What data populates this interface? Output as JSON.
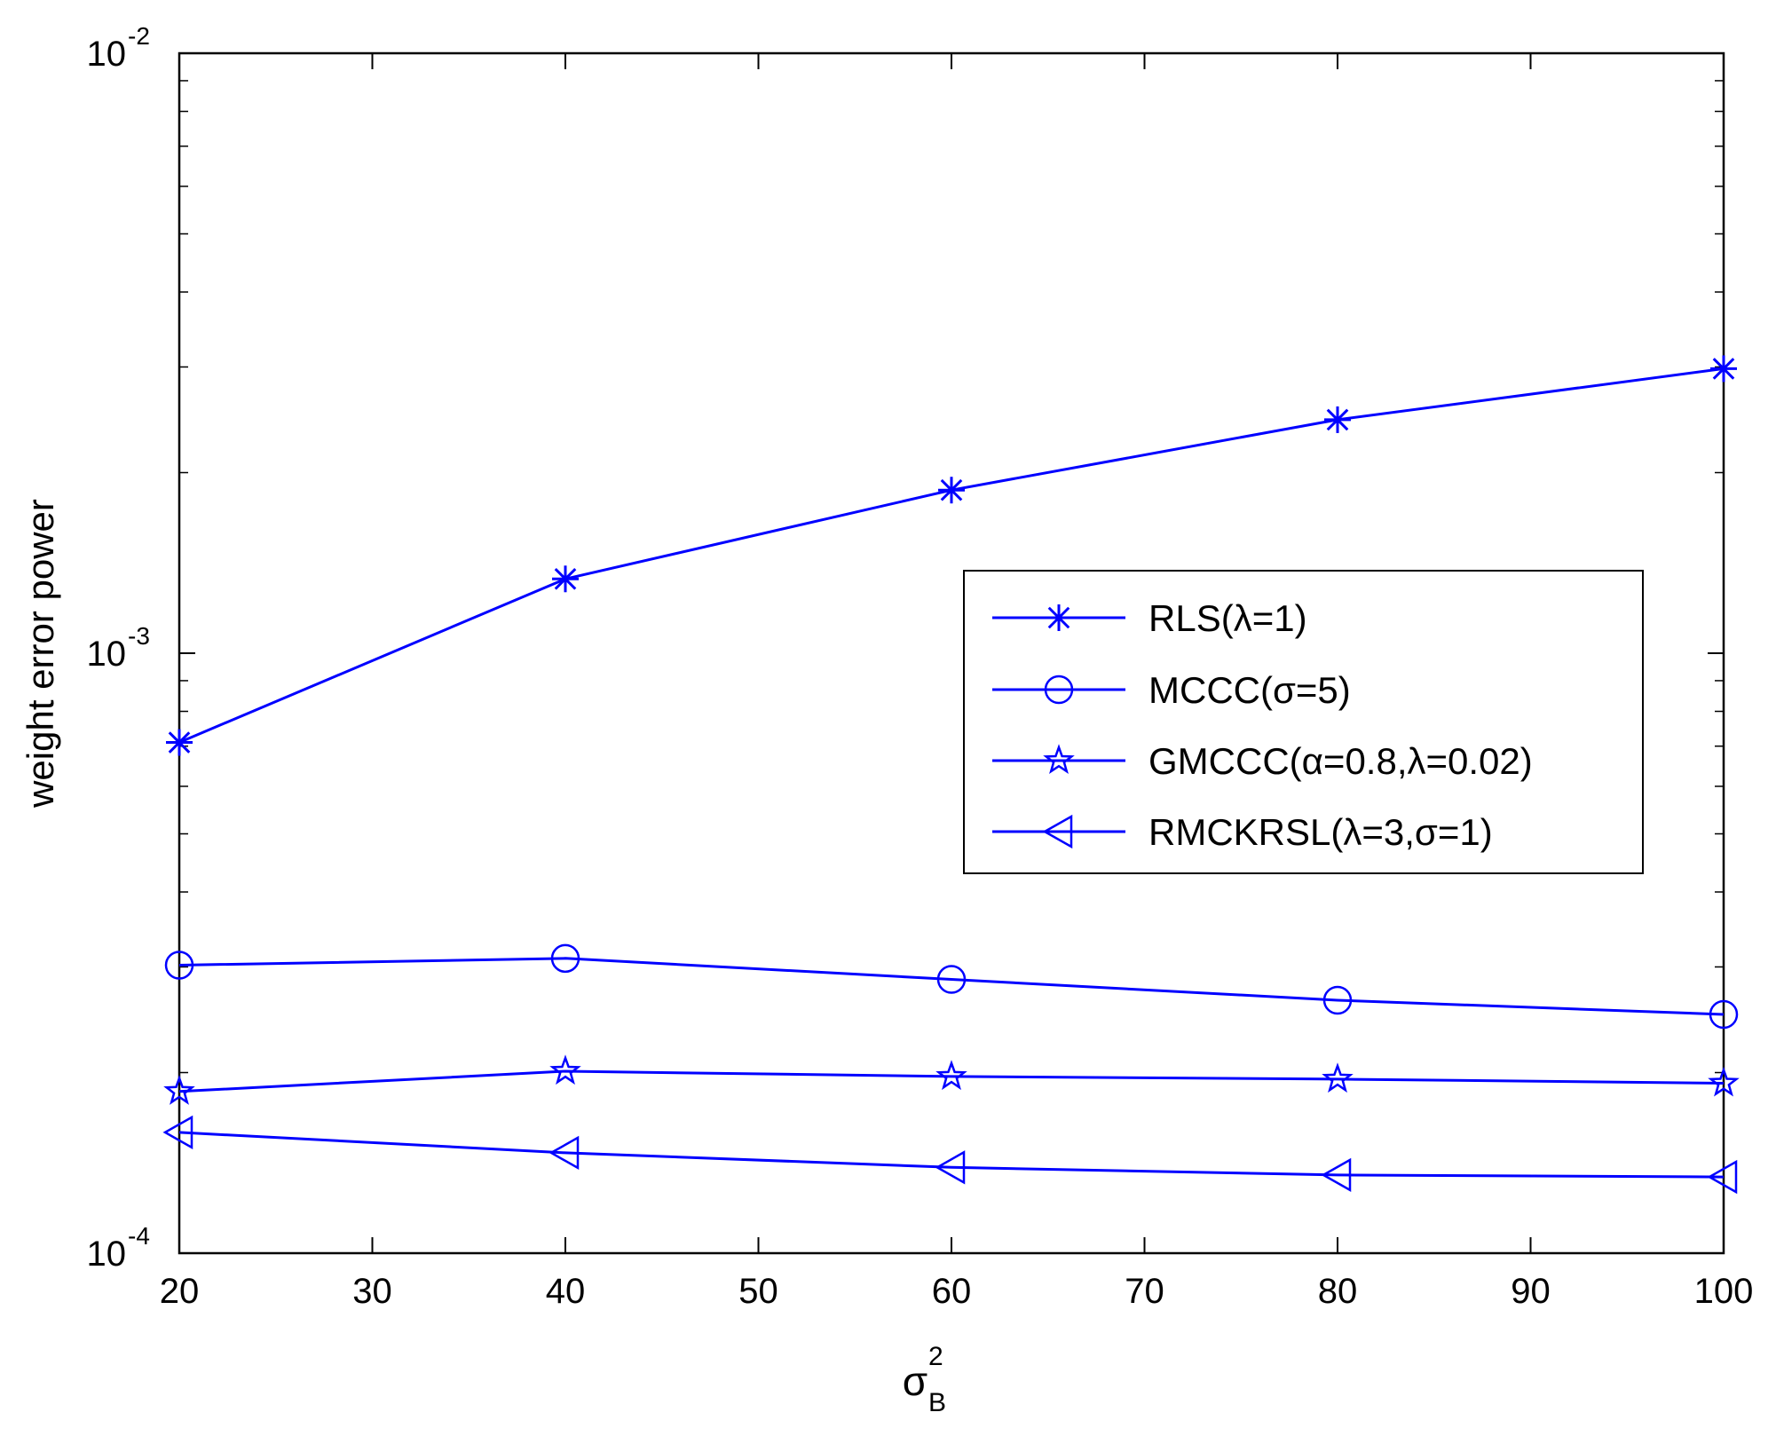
{
  "chart_data": {
    "type": "line",
    "xlabel": "σ",
    "xlabel_superscript": "2",
    "xlabel_subscript": "B",
    "ylabel": "weight error power",
    "yscale": "log",
    "xlim": [
      20,
      100
    ],
    "ylim": [
      0.0001,
      0.01
    ],
    "x_ticks": [
      20,
      30,
      40,
      50,
      60,
      70,
      80,
      90,
      100
    ],
    "y_ticks": [
      {
        "value": 0.0001,
        "base": "10",
        "exp": "-4"
      },
      {
        "value": 0.001,
        "base": "10",
        "exp": "-3"
      },
      {
        "value": 0.01,
        "base": "10",
        "exp": "-2"
      }
    ],
    "grid": false,
    "legend_position": "right-center",
    "x": [
      20,
      40,
      60,
      80,
      100
    ],
    "series": [
      {
        "name": "RLS(λ=1)",
        "marker": "asterisk",
        "values": [
          0.00071,
          0.00133,
          0.00187,
          0.00245,
          0.00298
        ]
      },
      {
        "name": "MCCC(σ=5)",
        "marker": "circle",
        "values": [
          0.000302,
          0.00031,
          0.000286,
          0.000264,
          0.00025
        ]
      },
      {
        "name": "GMCCC(α=0.8,λ=0.02)",
        "marker": "pentagram",
        "values": [
          0.000186,
          0.000201,
          0.000197,
          0.000195,
          0.000192
        ]
      },
      {
        "name": "RMCKRSL(λ=3,σ=1)",
        "marker": "triangle-left",
        "values": [
          0.000159,
          0.000147,
          0.000139,
          0.000135,
          0.000134
        ]
      }
    ],
    "color": "#0000ff"
  }
}
